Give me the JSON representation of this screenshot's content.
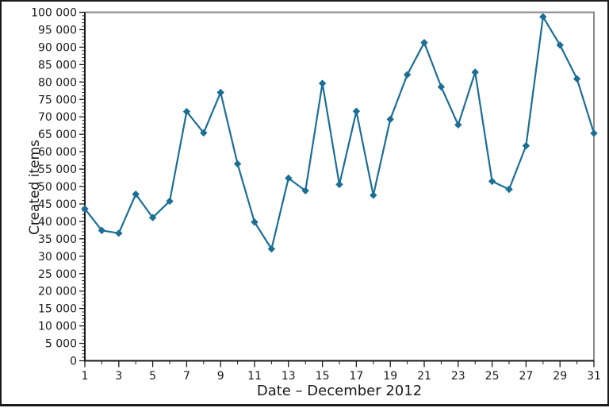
{
  "chart_data": {
    "type": "line",
    "title": "",
    "xlabel": "Date – December 2012",
    "ylabel": "Created items",
    "series_name": "Created items",
    "x": [
      1,
      2,
      3,
      4,
      5,
      6,
      7,
      8,
      9,
      10,
      11,
      12,
      13,
      14,
      15,
      16,
      17,
      18,
      19,
      20,
      21,
      22,
      23,
      24,
      25,
      26,
      27,
      28,
      29,
      30,
      31
    ],
    "values": [
      43600,
      37400,
      36600,
      47800,
      41100,
      45800,
      71500,
      65400,
      77000,
      56500,
      39800,
      32100,
      52400,
      48800,
      79600,
      50600,
      71600,
      47500,
      69300,
      82100,
      91300,
      78600,
      67700,
      82800,
      51500,
      49200,
      61700,
      98700,
      90600,
      80900,
      65300
    ],
    "xlim": [
      1,
      31
    ],
    "ylim": [
      0,
      100000
    ],
    "y_major_step": 5000,
    "y_minor_step": 1000,
    "x_minor_step": 1,
    "grid": "off",
    "legend": "none",
    "marker": "diamond",
    "line_color": "#1b6e96",
    "axis_color": "#1a1a1a",
    "frame_color": "#8a8a8a",
    "text_color": "#1a1a1a",
    "x_tick_positions": [
      1,
      3,
      5,
      7,
      9,
      11,
      13,
      15,
      17,
      19,
      21,
      23,
      25,
      27,
      29,
      31
    ],
    "x_tick_labels": [
      "1",
      "3",
      "5",
      "7",
      "9",
      "11",
      "13",
      "15",
      "17",
      "19",
      "21",
      "23",
      "25",
      "27",
      "29",
      "31"
    ],
    "y_tick_values": [
      0,
      5000,
      10000,
      15000,
      20000,
      25000,
      30000,
      35000,
      40000,
      45000,
      50000,
      55000,
      60000,
      65000,
      70000,
      75000,
      80000,
      85000,
      90000,
      95000,
      100000
    ],
    "y_tick_labels": [
      "0",
      "5 000",
      "10 000",
      "15 000",
      "20 000",
      "25 000",
      "30 000",
      "35 000",
      "40 000",
      "45 000",
      "50 000",
      "55 000",
      "60 000",
      "65 000",
      "70 000",
      "75 000",
      "80 000",
      "85 000",
      "90 000",
      "95 000",
      "100 000"
    ]
  }
}
